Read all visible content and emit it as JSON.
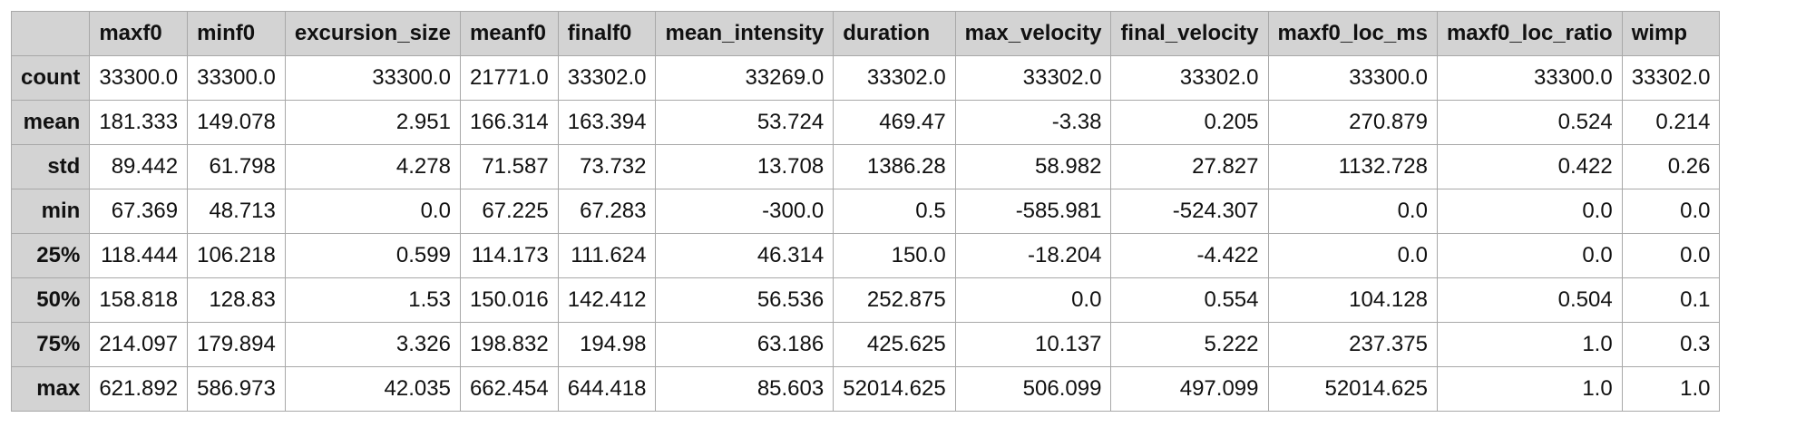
{
  "chart_data": {
    "type": "table",
    "columns": [
      "maxf0",
      "minf0",
      "excursion_size",
      "meanf0",
      "finalf0",
      "mean_intensity",
      "duration",
      "max_velocity",
      "final_velocity",
      "maxf0_loc_ms",
      "maxf0_loc_ratio",
      "wimp"
    ],
    "rows": [
      {
        "label": "count",
        "values": [
          "33300.0",
          "33300.0",
          "33300.0",
          "21771.0",
          "33302.0",
          "33269.0",
          "33302.0",
          "33302.0",
          "33302.0",
          "33300.0",
          "33300.0",
          "33302.0"
        ]
      },
      {
        "label": "mean",
        "values": [
          "181.333",
          "149.078",
          "2.951",
          "166.314",
          "163.394",
          "53.724",
          "469.47",
          "-3.38",
          "0.205",
          "270.879",
          "0.524",
          "0.214"
        ]
      },
      {
        "label": "std",
        "values": [
          "89.442",
          "61.798",
          "4.278",
          "71.587",
          "73.732",
          "13.708",
          "1386.28",
          "58.982",
          "27.827",
          "1132.728",
          "0.422",
          "0.26"
        ]
      },
      {
        "label": "min",
        "values": [
          "67.369",
          "48.713",
          "0.0",
          "67.225",
          "67.283",
          "-300.0",
          "0.5",
          "-585.981",
          "-524.307",
          "0.0",
          "0.0",
          "0.0"
        ]
      },
      {
        "label": "25%",
        "values": [
          "118.444",
          "106.218",
          "0.599",
          "114.173",
          "111.624",
          "46.314",
          "150.0",
          "-18.204",
          "-4.422",
          "0.0",
          "0.0",
          "0.0"
        ]
      },
      {
        "label": "50%",
        "values": [
          "158.818",
          "128.83",
          "1.53",
          "150.016",
          "142.412",
          "56.536",
          "252.875",
          "0.0",
          "0.554",
          "104.128",
          "0.504",
          "0.1"
        ]
      },
      {
        "label": "75%",
        "values": [
          "214.097",
          "179.894",
          "3.326",
          "198.832",
          "194.98",
          "63.186",
          "425.625",
          "10.137",
          "5.222",
          "237.375",
          "1.0",
          "0.3"
        ]
      },
      {
        "label": "max",
        "values": [
          "621.892",
          "586.973",
          "42.035",
          "662.454",
          "644.418",
          "85.603",
          "52014.625",
          "506.099",
          "497.099",
          "52014.625",
          "1.0",
          "1.0"
        ]
      }
    ]
  }
}
